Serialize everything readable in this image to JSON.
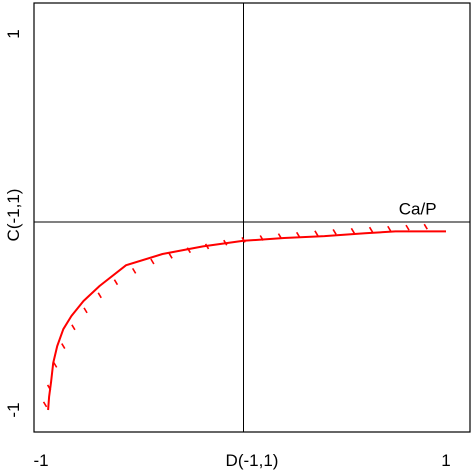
{
  "chart_data": {
    "type": "line",
    "title": "",
    "xlabel": "D(-1,1)",
    "ylabel": "C(-1,1)",
    "xlim": [
      -1,
      1
    ],
    "ylim": [
      -1,
      1
    ],
    "x_ticks": [
      {
        "value": -1,
        "label": "-1"
      },
      {
        "value": 1,
        "label": "1"
      }
    ],
    "y_ticks": [
      {
        "value": 1,
        "label": "1"
      },
      {
        "value": -1,
        "label": "-1"
      }
    ],
    "grid": false,
    "reference_lines": {
      "x": 0,
      "y": 0
    },
    "colors": {
      "series": "#ff0000",
      "axes": "#000000"
    },
    "annotations": [
      {
        "text": "Ca/P",
        "x": 0.86,
        "y": 0.04
      }
    ],
    "series": [
      {
        "style": "solid",
        "x": [
          -0.965,
          -0.96,
          -0.95,
          -0.94,
          -0.92,
          -0.89,
          -0.85,
          -0.79,
          -0.71,
          -0.58,
          -0.4,
          -0.2,
          0.0,
          0.2,
          0.4,
          0.6,
          0.75,
          1.0
        ],
        "y": [
          -1.0,
          -0.93,
          -0.85,
          -0.75,
          -0.66,
          -0.57,
          -0.5,
          -0.42,
          -0.34,
          -0.23,
          -0.17,
          -0.13,
          -0.1,
          -0.085,
          -0.075,
          -0.06,
          -0.05,
          -0.05
        ]
      },
      {
        "style": "hatch",
        "x": [
          -0.98,
          -0.96,
          -0.93,
          -0.89,
          -0.84,
          -0.78,
          -0.71,
          -0.63,
          -0.54,
          -0.45,
          -0.36,
          -0.27,
          -0.18,
          -0.09,
          0.0,
          0.09,
          0.18,
          0.27,
          0.36,
          0.45,
          0.54,
          0.63,
          0.72,
          0.81,
          0.9
        ],
        "y": [
          -0.97,
          -0.88,
          -0.76,
          -0.66,
          -0.56,
          -0.47,
          -0.39,
          -0.32,
          -0.26,
          -0.21,
          -0.18,
          -0.15,
          -0.13,
          -0.11,
          -0.095,
          -0.085,
          -0.075,
          -0.068,
          -0.06,
          -0.053,
          -0.047,
          -0.041,
          -0.036,
          -0.03,
          -0.025
        ]
      }
    ]
  }
}
